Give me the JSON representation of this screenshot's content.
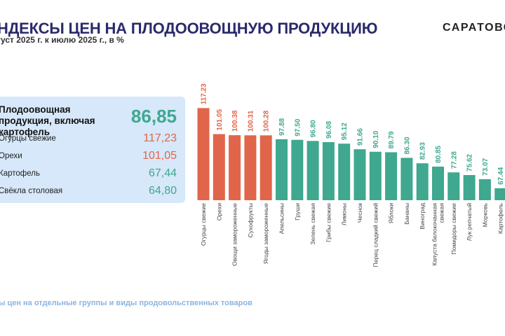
{
  "header": {
    "title": "НДЕКСЫ ЦЕН НА ПЛОДООВОЩНУЮ ПРОДУКЦИЮ",
    "subtitle": "густ 2025 г. к июлю 2025 г., в %",
    "brand": "САРАТОВС"
  },
  "summary_panel": {
    "main_label": "Плодоовощная продукция, включая картофель",
    "main_value": "86,85",
    "rows": [
      {
        "label": "Огурцы свежие",
        "value": "117,23",
        "trend": "up"
      },
      {
        "label": "Орехи",
        "value": "101,05",
        "trend": "up"
      },
      {
        "label": "Картофель",
        "value": "67,44",
        "trend": "down"
      },
      {
        "label": "Свёкла столовая",
        "value": "64,80",
        "trend": "down"
      }
    ]
  },
  "footer": {
    "text": "ы цен на отдельные группы и виды продовольственных товаров"
  },
  "colors": {
    "increase": "#e1654a",
    "decrease": "#3fa88f",
    "panel_bg": "#d6e8fa",
    "title": "#2b2a6b"
  },
  "chart_data": {
    "type": "bar",
    "title": "",
    "xlabel": "",
    "ylabel": "",
    "categories": [
      "Огурцы свежие",
      "Орехи",
      "Овощи замороженные",
      "Сухофрукты",
      "Ягоды замороженные",
      "Апельсины",
      "Груши",
      "Зелень свежая",
      "Грибы свежие",
      "Лимоны",
      "Чеснок",
      "Перец сладкий свежий",
      "Яблоки",
      "Бананы",
      "Виноград",
      "Капуста белокочанная свежая",
      "Помидоры свежие",
      "Лук репчатый",
      "Морковь",
      "Картофель"
    ],
    "values": [
      117.23,
      101.05,
      100.38,
      100.31,
      100.28,
      97.88,
      97.5,
      96.8,
      96.08,
      95.12,
      91.66,
      90.1,
      89.79,
      86.3,
      82.93,
      80.85,
      77.28,
      75.62,
      73.07,
      67.44
    ],
    "value_labels": [
      "117.23",
      "101.05",
      "100.38",
      "100.31",
      "100.28",
      "97.88",
      "97.50",
      "96.80",
      "96.08",
      "95.12",
      "91.66",
      "90.10",
      "89.79",
      "86.30",
      "82.93",
      "80.85",
      "77.28",
      "75.62",
      "73.07",
      "67.44"
    ],
    "threshold": 100,
    "grid": false,
    "legend": "none"
  }
}
